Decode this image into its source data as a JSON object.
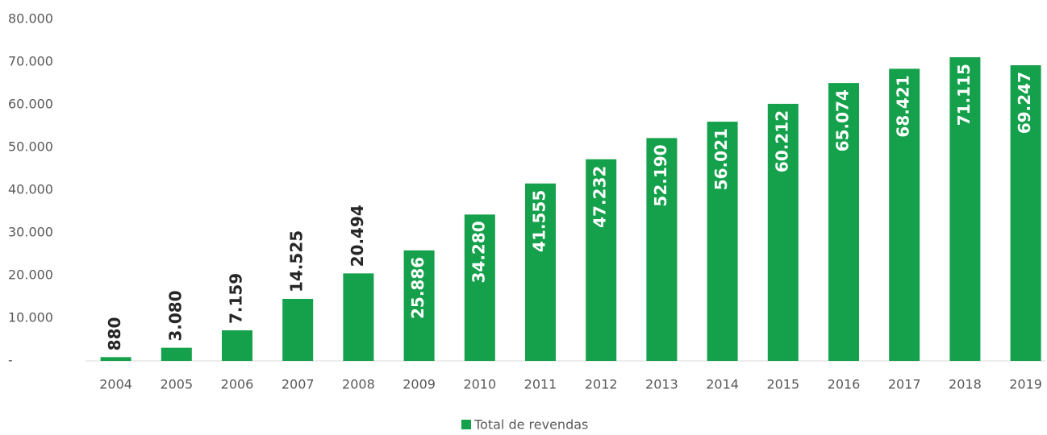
{
  "chart_data": {
    "type": "bar",
    "categories": [
      "2004",
      "2005",
      "2006",
      "2007",
      "2008",
      "2009",
      "2010",
      "2011",
      "2012",
      "2013",
      "2014",
      "2015",
      "2016",
      "2017",
      "2018",
      "2019"
    ],
    "series": [
      {
        "name": "Total de revendas",
        "color": "#15a04b",
        "values": [
          880,
          3080,
          7159,
          14525,
          20494,
          25886,
          34280,
          41555,
          47232,
          52190,
          56021,
          60212,
          65074,
          68421,
          71115,
          69247
        ],
        "value_labels": [
          "880",
          "3.080",
          "7.159",
          "14.525",
          "20.494",
          "25.886",
          "34.280",
          "41.555",
          "47.232",
          "52.190",
          "56.021",
          "60.212",
          "65.074",
          "68.421",
          "71.115",
          "69.247"
        ]
      }
    ],
    "ylim": [
      0,
      80000
    ],
    "yticks": [
      {
        "value": 0,
        "label": "-"
      },
      {
        "value": 10000,
        "label": "10.000"
      },
      {
        "value": 20000,
        "label": "20.000"
      },
      {
        "value": 30000,
        "label": "30.000"
      },
      {
        "value": 40000,
        "label": "40.000"
      },
      {
        "value": 50000,
        "label": "50.000"
      },
      {
        "value": 60000,
        "label": "60.000"
      },
      {
        "value": 70000,
        "label": "70.000"
      },
      {
        "value": 80000,
        "label": "80.000"
      }
    ],
    "grid": false,
    "legend": "bottom"
  }
}
